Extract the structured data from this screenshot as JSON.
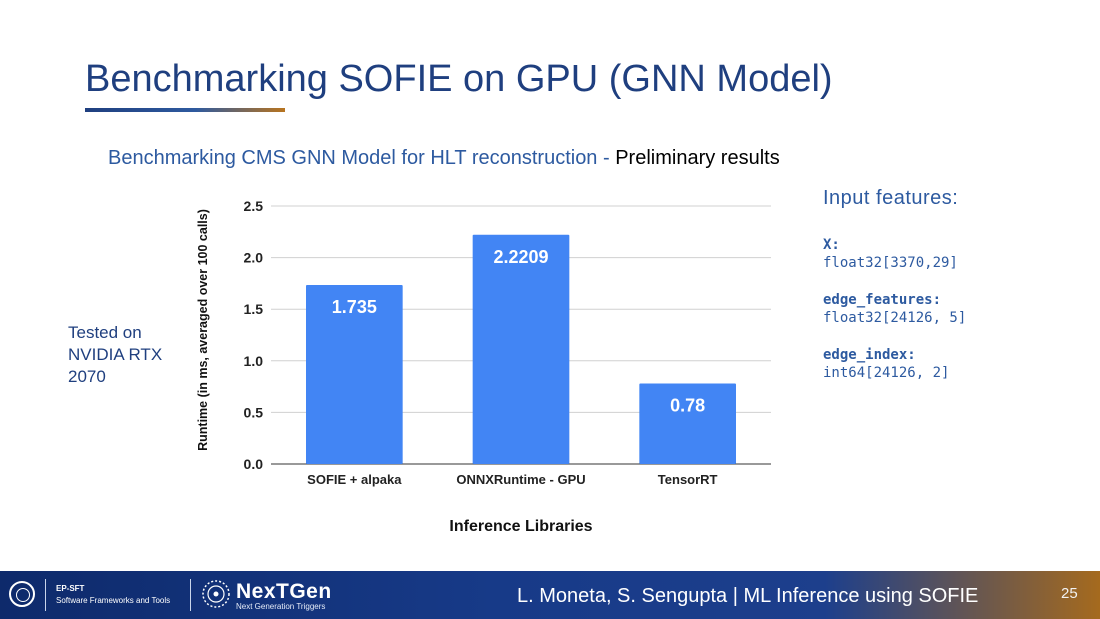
{
  "slide": {
    "title": "Benchmarking SOFIE on GPU (GNN Model)",
    "subtitle": "Benchmarking CMS GNN Model for HLT reconstruction - ",
    "subtitle_emphasis": "Preliminary results",
    "note_lines": [
      "Tested on",
      "NVIDIA RTX",
      "2070"
    ],
    "page_number": "25"
  },
  "features": {
    "heading": "Input features:",
    "items": [
      {
        "name": "X:",
        "value": "float32[3370,29]"
      },
      {
        "name": "edge_features:",
        "value": "float32[24126, 5]"
      },
      {
        "name": "edge_index:",
        "value": "int64[24126, 2]"
      }
    ]
  },
  "footer": {
    "dept_short": "EP-SFT",
    "dept_long": "Software Frameworks and Tools",
    "project_name": "NexTGen",
    "project_tagline": "Next Generation Triggers",
    "authors": "L. Moneta, S. Sengupta | ML Inference using SOFIE"
  },
  "colors": {
    "title": "#1f3f7f",
    "subtitle": "#2d5aa0",
    "bar": "#4285f4",
    "footer": "#173a88"
  },
  "chart_data": {
    "type": "bar",
    "categories": [
      "SOFIE + alpaka",
      "ONNXRuntime - GPU",
      "TensorRT"
    ],
    "values": [
      1.735,
      2.2209,
      0.78
    ],
    "data_labels": [
      "1.735",
      "2.2209",
      "0.78"
    ],
    "xlabel": "Inference Libraries",
    "ylabel": "Runtime (in ms, averaged over 100 calls)",
    "ylim": [
      0,
      2.5
    ],
    "yticks": [
      "0.0",
      "0.5",
      "1.0",
      "1.5",
      "2.0",
      "2.5"
    ],
    "grid": true,
    "legend": "none"
  }
}
